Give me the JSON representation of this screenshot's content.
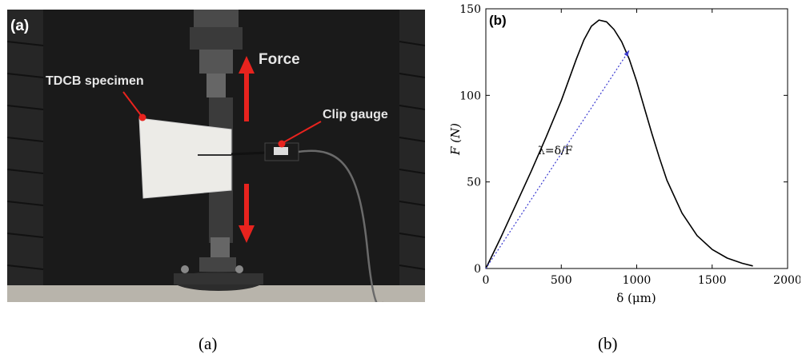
{
  "photo": {
    "panel_label": "(a)",
    "label_force": "Force",
    "label_specimen": "TDCB specimen",
    "label_clip": "Clip gauge",
    "arrow_color": "#e8231e",
    "marker_color": "#e8231e"
  },
  "chart_data": {
    "type": "line",
    "panel_label": "(b)",
    "xlabel": "δ (μm)",
    "ylabel": "F (N)",
    "xlim": [
      0,
      2000
    ],
    "ylim": [
      0,
      150
    ],
    "xticks": [
      0,
      500,
      1000,
      1500,
      2000
    ],
    "yticks": [
      0,
      50,
      100,
      150
    ],
    "grid": false,
    "series": [
      {
        "color": "#000000",
        "x": [
          0,
          50,
          100,
          200,
          300,
          400,
          500,
          600,
          650,
          700,
          750,
          800,
          850,
          900,
          950,
          1000,
          1050,
          1100,
          1150,
          1200,
          1300,
          1400,
          1500,
          1600,
          1700,
          1770
        ],
        "y": [
          0,
          9,
          18,
          37,
          56,
          76,
          97,
          121,
          132,
          140,
          143.5,
          142.5,
          138,
          131,
          121,
          108,
          93,
          78,
          64,
          51,
          32,
          19,
          11,
          6,
          3,
          1.5
        ]
      }
    ],
    "annotation": {
      "text": "λ=δ/F",
      "line_from": [
        0,
        0
      ],
      "line_to": [
        950,
        126
      ],
      "color": "#3a3ad0"
    }
  },
  "captions": {
    "a": "(a)",
    "b": "(b)"
  }
}
